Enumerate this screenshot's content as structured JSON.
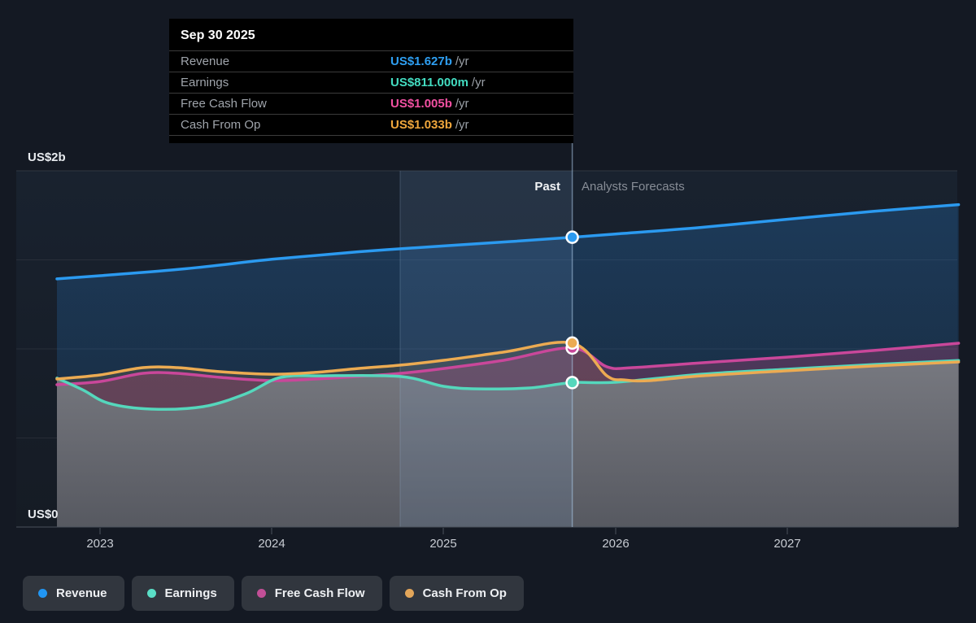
{
  "tooltip": {
    "date": "Sep 30 2025",
    "rows": [
      {
        "label": "Revenue",
        "value": "US$1.627b",
        "suffix": "/yr",
        "color": "#2e9ff2"
      },
      {
        "label": "Earnings",
        "value": "US$811.000m",
        "suffix": "/yr",
        "color": "#43dcc1"
      },
      {
        "label": "Free Cash Flow",
        "value": "US$1.005b",
        "suffix": "/yr",
        "color": "#f250a2"
      },
      {
        "label": "Cash From Op",
        "value": "US$1.033b",
        "suffix": "/yr",
        "color": "#f0a73c"
      }
    ]
  },
  "chart_data": {
    "type": "area",
    "y_axis": {
      "top_label": "US$2b",
      "bottom_label": "US$0",
      "min": 0,
      "max": 2,
      "unit": "US$ billions per year"
    },
    "x_tick_labels": [
      "2023",
      "2024",
      "2025",
      "2026",
      "2027"
    ],
    "x_range": [
      2022.749,
      2027.998
    ],
    "past_label": "Past",
    "forecast_label": "Analysts Forecasts",
    "divider_year": 2025.749,
    "highlight_band_years": [
      2024.747,
      2025.749
    ],
    "grid": true,
    "series": [
      {
        "name": "Revenue",
        "color": "#2b9af0",
        "fill": "gradRevenue",
        "marker_value": 1.627,
        "area_z": 1,
        "line_z": 4,
        "points": [
          [
            2022.749,
            1.393
          ],
          [
            2023,
            1.411
          ],
          [
            2023.5,
            1.45
          ],
          [
            2024,
            1.503
          ],
          [
            2024.5,
            1.545
          ],
          [
            2025,
            1.578
          ],
          [
            2025.4,
            1.603
          ],
          [
            2025.749,
            1.627
          ],
          [
            2026,
            1.645
          ],
          [
            2026.5,
            1.682
          ],
          [
            2027,
            1.728
          ],
          [
            2027.5,
            1.772
          ],
          [
            2027.998,
            1.81
          ]
        ]
      },
      {
        "name": "Earnings",
        "color": "#55d7bc",
        "fill": "gradEarnings",
        "marker_value": 0.811,
        "area_z": 4,
        "line_z": 2,
        "points": [
          [
            2022.749,
            0.836
          ],
          [
            2022.9,
            0.77
          ],
          [
            2023.05,
            0.695
          ],
          [
            2023.3,
            0.662
          ],
          [
            2023.6,
            0.676
          ],
          [
            2023.85,
            0.749
          ],
          [
            2024.05,
            0.84
          ],
          [
            2024.3,
            0.849
          ],
          [
            2024.75,
            0.845
          ],
          [
            2025,
            0.79
          ],
          [
            2025.2,
            0.776
          ],
          [
            2025.5,
            0.781
          ],
          [
            2025.749,
            0.811
          ],
          [
            2026,
            0.813
          ],
          [
            2026.5,
            0.858
          ],
          [
            2027,
            0.886
          ],
          [
            2027.5,
            0.912
          ],
          [
            2027.998,
            0.935
          ]
        ]
      },
      {
        "name": "Free Cash Flow",
        "color": "#c9479a",
        "fill": "rgba(208,73,130,0.28)",
        "marker_value": 1.005,
        "area_z": 3,
        "line_z": 1,
        "points": [
          [
            2022.749,
            0.799
          ],
          [
            2023,
            0.817
          ],
          [
            2023.25,
            0.863
          ],
          [
            2023.45,
            0.863
          ],
          [
            2023.7,
            0.84
          ],
          [
            2024,
            0.822
          ],
          [
            2024.25,
            0.831
          ],
          [
            2024.5,
            0.845
          ],
          [
            2024.75,
            0.863
          ],
          [
            2025,
            0.89
          ],
          [
            2025.35,
            0.936
          ],
          [
            2025.749,
            1.005
          ],
          [
            2025.95,
            0.9
          ],
          [
            2026.1,
            0.895
          ],
          [
            2026.5,
            0.922
          ],
          [
            2027,
            0.954
          ],
          [
            2027.5,
            0.991
          ],
          [
            2027.998,
            1.032
          ]
        ]
      },
      {
        "name": "Cash From Op",
        "color": "#ecab52",
        "fill": "rgba(235,172,82,0.15)",
        "marker_value": 1.033,
        "area_z": 2,
        "line_z": 3,
        "points": [
          [
            2022.749,
            0.831
          ],
          [
            2023,
            0.854
          ],
          [
            2023.25,
            0.895
          ],
          [
            2023.45,
            0.895
          ],
          [
            2023.7,
            0.872
          ],
          [
            2024,
            0.858
          ],
          [
            2024.25,
            0.868
          ],
          [
            2024.5,
            0.89
          ],
          [
            2024.75,
            0.909
          ],
          [
            2025,
            0.936
          ],
          [
            2025.35,
            0.982
          ],
          [
            2025.749,
            1.033
          ],
          [
            2025.95,
            0.85
          ],
          [
            2026.05,
            0.826
          ],
          [
            2026.2,
            0.822
          ],
          [
            2026.5,
            0.849
          ],
          [
            2027,
            0.877
          ],
          [
            2027.5,
            0.904
          ],
          [
            2027.998,
            0.927
          ]
        ]
      }
    ]
  },
  "legend": {
    "items": [
      {
        "label": "Revenue",
        "color": "#2196f3"
      },
      {
        "label": "Earnings",
        "color": "#5adec6"
      },
      {
        "label": "Free Cash Flow",
        "color": "#c24f97"
      },
      {
        "label": "Cash From Op",
        "color": "#e3a65a"
      }
    ]
  }
}
